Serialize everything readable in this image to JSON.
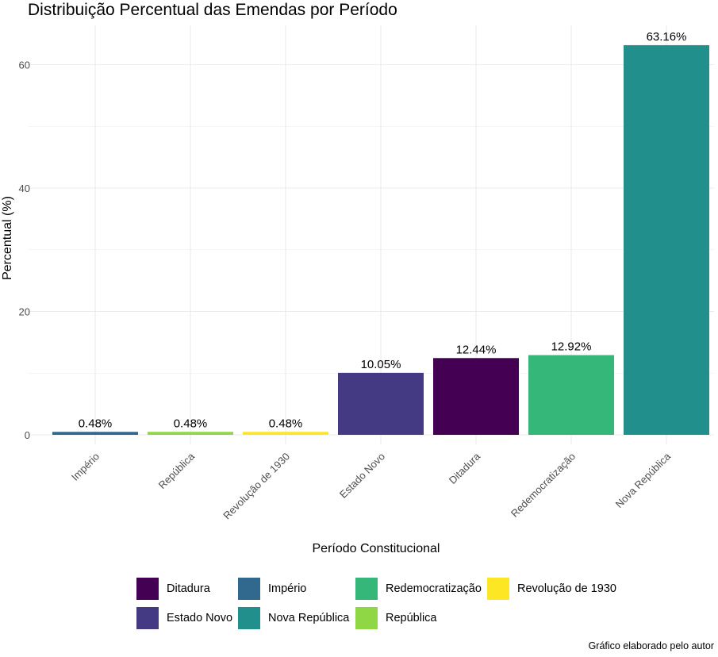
{
  "chart_data": {
    "type": "bar",
    "title": "Distribuição Percentual das Emendas por Período",
    "xlabel": "Período Constitucional",
    "ylabel": "Percentual (%)",
    "ylim": [
      0,
      66
    ],
    "yticks": [
      0,
      20,
      40,
      60
    ],
    "grid": true,
    "categories": [
      "Império",
      "República",
      "Revolução de 1930",
      "Estado Novo",
      "Ditadura",
      "Redemocratização",
      "Nova República"
    ],
    "values": [
      0.48,
      0.48,
      0.48,
      10.05,
      12.44,
      12.92,
      63.16
    ],
    "value_labels": [
      "0.48%",
      "0.48%",
      "0.48%",
      "10.05%",
      "12.44%",
      "12.92%",
      "63.16%"
    ],
    "colors": [
      "#31688e",
      "#8fd744",
      "#fde725",
      "#443a83",
      "#440154",
      "#35b779",
      "#21908c"
    ],
    "legend": {
      "position": "bottom",
      "items": [
        {
          "label": "Ditadura",
          "color": "#440154"
        },
        {
          "label": "Império",
          "color": "#31688e"
        },
        {
          "label": "Redemocratização",
          "color": "#35b779"
        },
        {
          "label": "Revolução de 1930",
          "color": "#fde725"
        },
        {
          "label": "Estado Novo",
          "color": "#443a83"
        },
        {
          "label": "Nova República",
          "color": "#21908c"
        },
        {
          "label": "República",
          "color": "#8fd744"
        }
      ]
    },
    "caption": "Gráfico elaborado pelo autor"
  }
}
